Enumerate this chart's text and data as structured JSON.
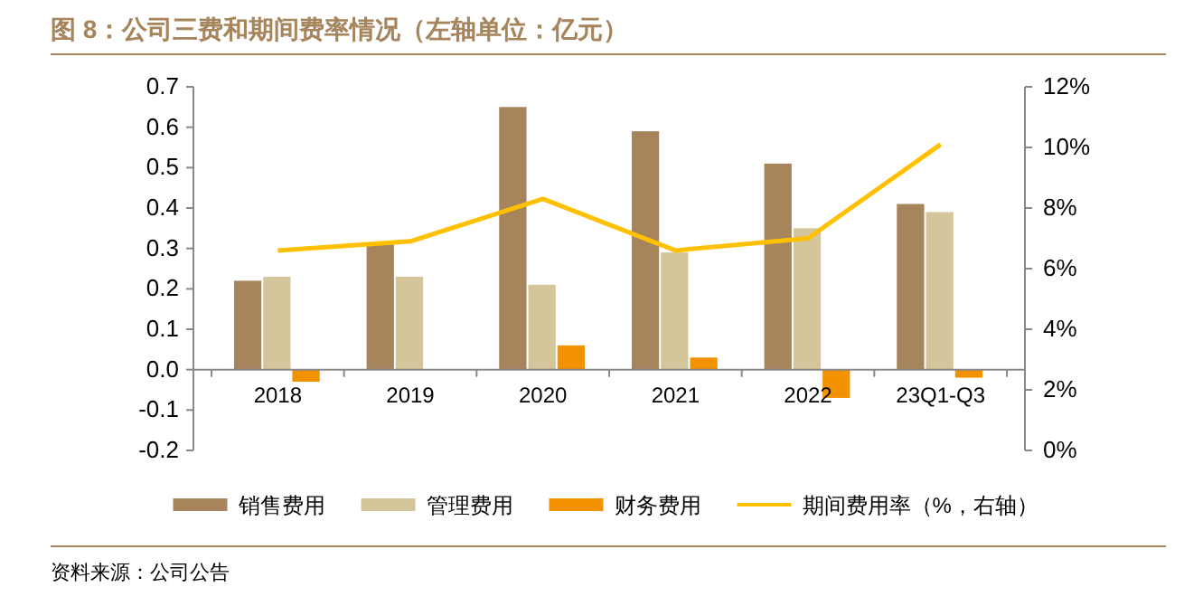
{
  "chart_data": {
    "type": "bar",
    "title": "图 8：公司三费和期间费率情况（左轴单位：亿元）",
    "categories": [
      "2018",
      "2019",
      "2020",
      "2021",
      "2022",
      "23Q1-Q3"
    ],
    "series": [
      {
        "name": "销售费用",
        "color": "#a6845c",
        "values": [
          0.22,
          0.31,
          0.65,
          0.59,
          0.51,
          0.41
        ]
      },
      {
        "name": "管理费用",
        "color": "#d5c59b",
        "values": [
          0.23,
          0.23,
          0.21,
          0.29,
          0.35,
          0.39
        ]
      },
      {
        "name": "财务费用",
        "color": "#f39200",
        "values": [
          -0.03,
          0,
          0.06,
          0.03,
          -0.07,
          -0.02
        ]
      },
      {
        "name": "期间费用率（%，右轴）",
        "type": "line",
        "axis": "y2",
        "color": "#ffc000",
        "values": [
          6.6,
          6.9,
          8.3,
          6.6,
          7.0,
          10.1
        ]
      }
    ],
    "ylim": [
      -0.2,
      0.7
    ],
    "yticks": [
      -0.2,
      -0.1,
      {
        "value": 0,
        "label": "0.0"
      },
      0.1,
      0.2,
      0.3,
      0.4,
      0.5,
      0.6,
      0.7
    ],
    "y2lim": [
      0,
      12
    ],
    "y2ticks": [
      {
        "value": 0,
        "label": "0%"
      },
      {
        "value": 2,
        "label": "2%"
      },
      {
        "value": 4,
        "label": "4%"
      },
      {
        "value": 6,
        "label": "6%"
      },
      {
        "value": 8,
        "label": "8%"
      },
      {
        "value": 10,
        "label": "10%"
      },
      {
        "value": 12,
        "label": "12%"
      }
    ],
    "legend": "bottom",
    "grid": false,
    "annotations": [
      "资料来源：公司公告"
    ]
  }
}
